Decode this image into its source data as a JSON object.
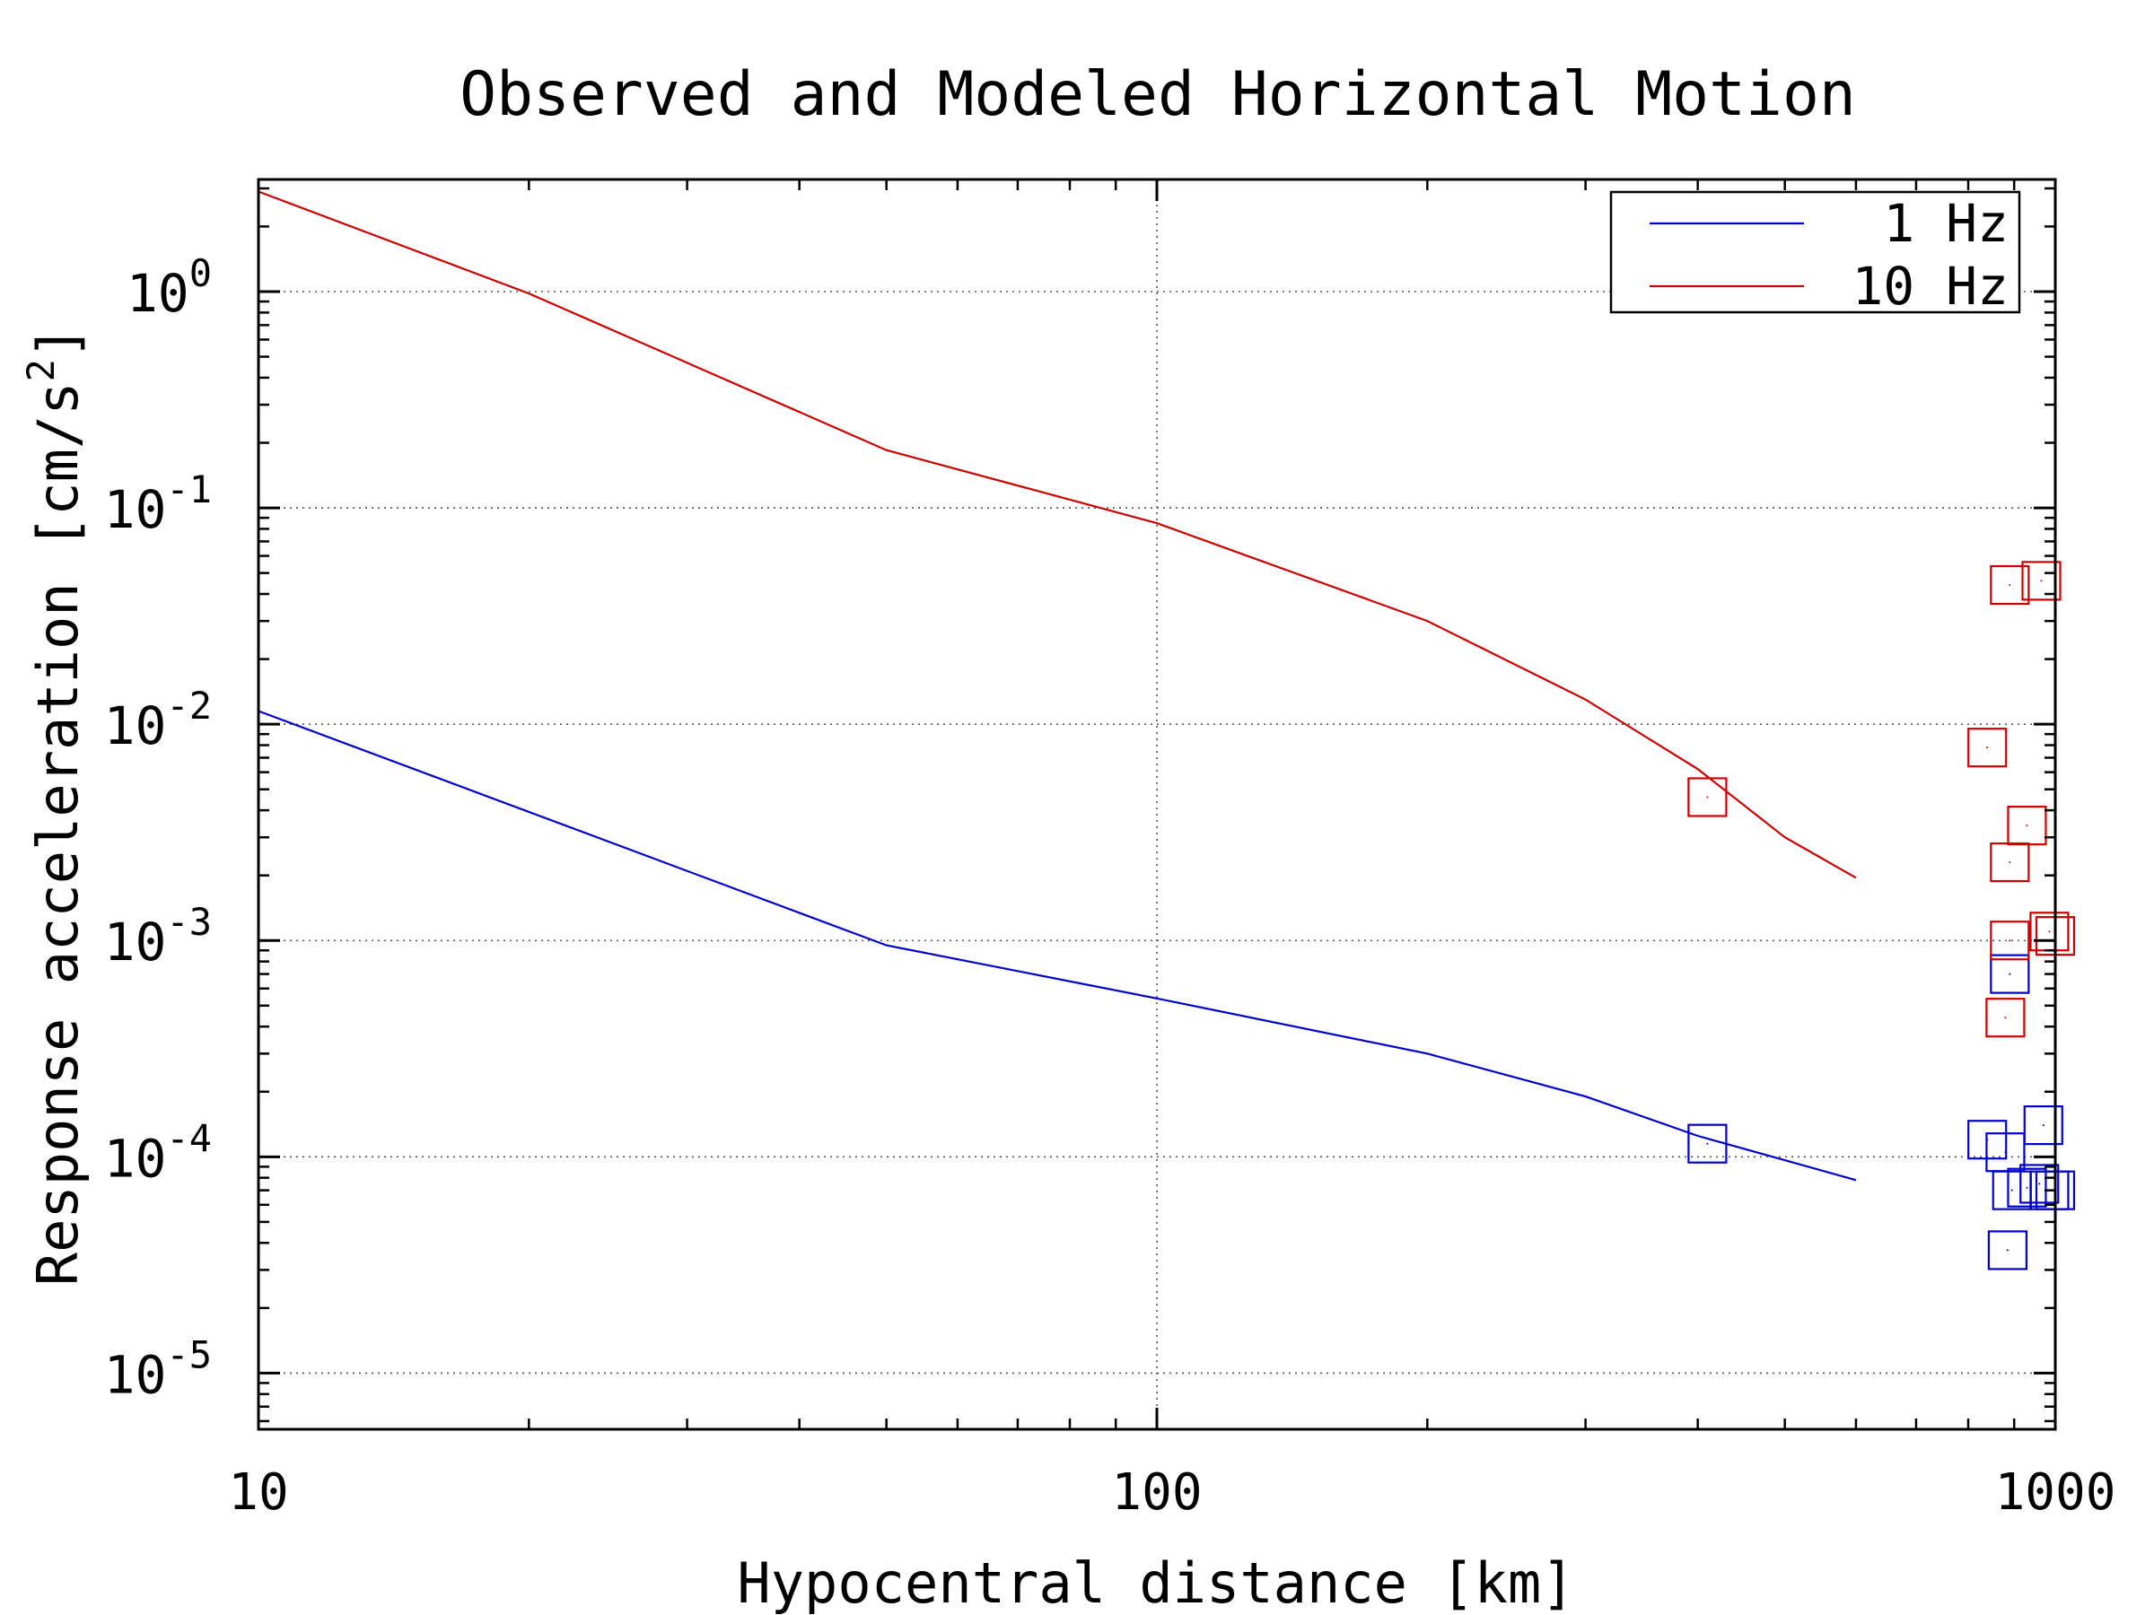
{
  "chart_data": {
    "type": "line",
    "title": "Observed and Modeled Horizontal Motion",
    "xlabel": "Hypocentral distance [km]",
    "ylabel": "Response acceleration [cm/s^2]",
    "ylabel_parts": {
      "main": "Response acceleration [cm/s",
      "sup": "2",
      "end": "]"
    },
    "xscale": "log",
    "yscale": "log",
    "xlim": [
      10,
      1000
    ],
    "ylim": [
      5.5e-06,
      3.3
    ],
    "xticks": [
      {
        "value": 10,
        "label": "10"
      },
      {
        "value": 100,
        "label": "100"
      },
      {
        "value": 1000,
        "label": "1000"
      }
    ],
    "yticks": [
      {
        "value": 1,
        "base": "10",
        "exp": "0"
      },
      {
        "value": 0.1,
        "base": "10",
        "exp": "-1"
      },
      {
        "value": 0.01,
        "base": "10",
        "exp": "-2"
      },
      {
        "value": 0.001,
        "base": "10",
        "exp": "-3"
      },
      {
        "value": 0.0001,
        "base": "10",
        "exp": "-4"
      },
      {
        "value": 1e-05,
        "base": "10",
        "exp": "-5"
      }
    ],
    "grid": true,
    "legend_position": "top-right",
    "series": [
      {
        "name": "1 Hz",
        "color": "#0000cc",
        "model_line": [
          {
            "x": 10,
            "y": 0.0115
          },
          {
            "x": 50,
            "y": 0.00095
          },
          {
            "x": 100,
            "y": 0.00054
          },
          {
            "x": 200,
            "y": 0.0003
          },
          {
            "x": 300,
            "y": 0.00019
          },
          {
            "x": 400,
            "y": 0.000125
          },
          {
            "x": 600,
            "y": 7.8e-05
          }
        ],
        "observed": [
          {
            "x": 410,
            "y": 0.000115
          },
          {
            "x": 840,
            "y": 0.00012
          },
          {
            "x": 880,
            "y": 0.000105
          },
          {
            "x": 895,
            "y": 7e-05
          },
          {
            "x": 930,
            "y": 7.2e-05
          },
          {
            "x": 960,
            "y": 7.5e-05
          },
          {
            "x": 985,
            "y": 7e-05
          },
          {
            "x": 1000,
            "y": 7e-05
          },
          {
            "x": 970,
            "y": 0.00014
          },
          {
            "x": 885,
            "y": 3.7e-05
          },
          {
            "x": 890,
            "y": 0.0007
          }
        ]
      },
      {
        "name": "10 Hz",
        "color": "#cc0000",
        "model_line": [
          {
            "x": 10,
            "y": 2.9
          },
          {
            "x": 20,
            "y": 0.98
          },
          {
            "x": 50,
            "y": 0.185
          },
          {
            "x": 100,
            "y": 0.085
          },
          {
            "x": 200,
            "y": 0.03
          },
          {
            "x": 300,
            "y": 0.013
          },
          {
            "x": 400,
            "y": 0.0062
          },
          {
            "x": 500,
            "y": 0.003
          },
          {
            "x": 600,
            "y": 0.00195
          }
        ],
        "observed": [
          {
            "x": 410,
            "y": 0.0046
          },
          {
            "x": 840,
            "y": 0.0078
          },
          {
            "x": 890,
            "y": 0.044
          },
          {
            "x": 965,
            "y": 0.046
          },
          {
            "x": 930,
            "y": 0.0034
          },
          {
            "x": 890,
            "y": 0.0023
          },
          {
            "x": 890,
            "y": 0.001
          },
          {
            "x": 985,
            "y": 0.0011
          },
          {
            "x": 1000,
            "y": 0.00105
          },
          {
            "x": 880,
            "y": 0.00044
          }
        ]
      }
    ]
  }
}
